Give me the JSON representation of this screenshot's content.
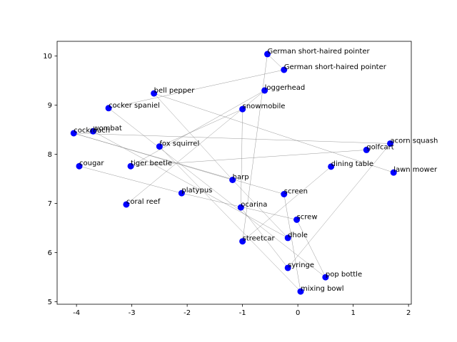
{
  "chart_data": {
    "type": "scatter",
    "xlim": [
      -4.35,
      2.05
    ],
    "ylim": [
      4.95,
      10.3
    ],
    "xticks": [
      -4,
      -3,
      -2,
      -1,
      0,
      1,
      2
    ],
    "yticks": [
      5,
      6,
      7,
      8,
      9,
      10
    ],
    "grid": false,
    "marker_color": "#0000ff",
    "line_color": "#808080",
    "points": [
      {
        "label": "German short-haired pointer",
        "x": -0.55,
        "y": 10.04
      },
      {
        "label": "German short-haired pointer",
        "x": -0.25,
        "y": 9.72
      },
      {
        "label": "bell pepper",
        "x": -2.6,
        "y": 9.24
      },
      {
        "label": "loggerhead",
        "x": -0.6,
        "y": 9.3
      },
      {
        "label": "cocker spaniel",
        "x": -3.42,
        "y": 8.94
      },
      {
        "label": "snowmobile",
        "x": -1.0,
        "y": 8.92
      },
      {
        "label": "cockroach",
        "x": -4.05,
        "y": 8.43
      },
      {
        "label": "wombat",
        "x": -3.7,
        "y": 8.47
      },
      {
        "label": "fox squirrel",
        "x": -2.5,
        "y": 8.16
      },
      {
        "label": "acorn squash",
        "x": 1.67,
        "y": 8.22
      },
      {
        "label": "golfcart",
        "x": 1.24,
        "y": 8.09
      },
      {
        "label": "cougar",
        "x": -3.95,
        "y": 7.76
      },
      {
        "label": "tiger beetle",
        "x": -3.02,
        "y": 7.76
      },
      {
        "label": "dining table",
        "x": 0.6,
        "y": 7.75
      },
      {
        "label": "lawn mower",
        "x": 1.73,
        "y": 7.63
      },
      {
        "label": "harp",
        "x": -1.18,
        "y": 7.48
      },
      {
        "label": "platypus",
        "x": -2.1,
        "y": 7.21
      },
      {
        "label": "screen",
        "x": -0.25,
        "y": 7.19
      },
      {
        "label": "coral reef",
        "x": -3.1,
        "y": 6.98
      },
      {
        "label": "ocarina",
        "x": -1.03,
        "y": 6.92
      },
      {
        "label": "screw",
        "x": -0.02,
        "y": 6.67
      },
      {
        "label": "dhole",
        "x": -0.18,
        "y": 6.3
      },
      {
        "label": "streetcar",
        "x": -1.0,
        "y": 6.23
      },
      {
        "label": "syringe",
        "x": -0.18,
        "y": 5.69
      },
      {
        "label": "pop bottle",
        "x": 0.5,
        "y": 5.5
      },
      {
        "label": "mixing bowl",
        "x": 0.05,
        "y": 5.21
      }
    ],
    "connections": [
      [
        0,
        1
      ],
      [
        0,
        22
      ],
      [
        1,
        4
      ],
      [
        2,
        14
      ],
      [
        3,
        18
      ],
      [
        3,
        12
      ],
      [
        4,
        24
      ],
      [
        5,
        19
      ],
      [
        5,
        8
      ],
      [
        6,
        9
      ],
      [
        6,
        17
      ],
      [
        7,
        21
      ],
      [
        8,
        25
      ],
      [
        9,
        23
      ],
      [
        10,
        12
      ],
      [
        11,
        16
      ],
      [
        13,
        22
      ],
      [
        15,
        2
      ],
      [
        15,
        6
      ],
      [
        16,
        20
      ],
      [
        19,
        23
      ],
      [
        20,
        24
      ],
      [
        21,
        15
      ],
      [
        17,
        25
      ]
    ]
  }
}
